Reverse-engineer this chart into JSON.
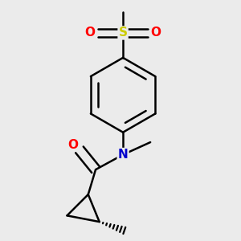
{
  "bg_color": "#ebebeb",
  "atom_colors": {
    "C": "#000000",
    "N": "#0000cc",
    "O": "#ff0000",
    "S": "#cccc00"
  },
  "bond_color": "#000000",
  "bond_width": 1.8,
  "figsize": [
    3.0,
    3.0
  ],
  "dpi": 100
}
